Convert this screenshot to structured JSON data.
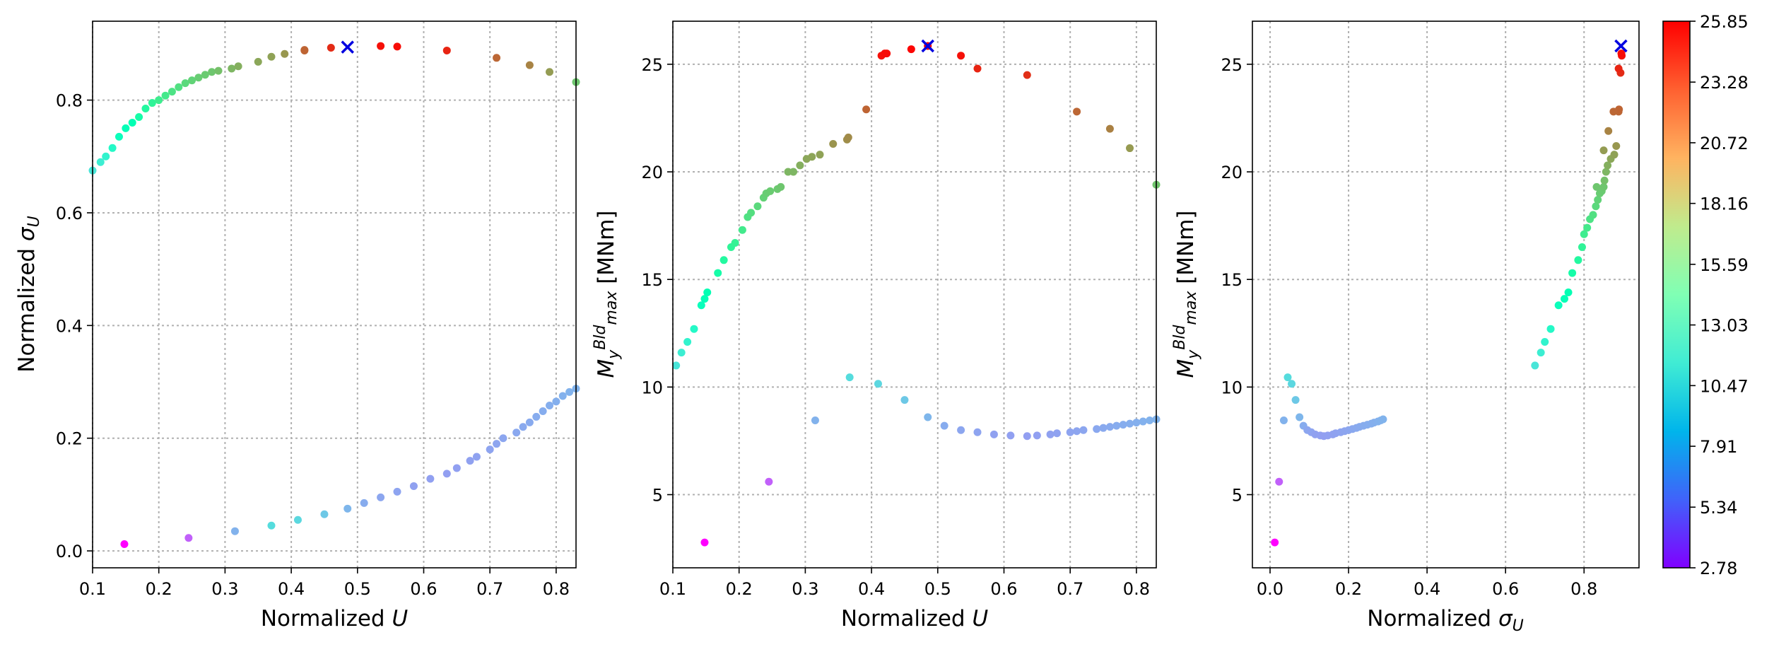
{
  "chart_data": [
    {
      "type": "scatter",
      "xlabel": "Normalized U",
      "ylabel": "Normalized σ_U",
      "xlim": [
        0.1,
        0.83
      ],
      "ylim": [
        -0.03,
        0.94
      ],
      "xticks": [
        "0.1",
        "0.2",
        "0.3",
        "0.4",
        "0.5",
        "0.6",
        "0.7",
        "0.8"
      ],
      "yticks": [
        "0.0",
        "0.2",
        "0.4",
        "0.6",
        "0.8"
      ],
      "grid": true,
      "colormap": "rainbow",
      "series": [
        {
          "x": [
            0.1,
            0.112,
            0.12,
            0.13,
            0.14,
            0.15,
            0.16,
            0.17,
            0.18,
            0.19,
            0.2,
            0.21,
            0.22,
            0.23,
            0.24,
            0.25,
            0.26,
            0.27,
            0.28,
            0.29,
            0.31,
            0.32,
            0.35,
            0.37,
            0.39,
            0.42,
            0.42,
            0.46,
            0.535,
            0.56,
            0.635,
            0.71,
            0.76,
            0.79,
            0.83
          ],
          "y": [
            0.675,
            0.69,
            0.7,
            0.715,
            0.735,
            0.75,
            0.76,
            0.77,
            0.785,
            0.795,
            0.8,
            0.808,
            0.815,
            0.823,
            0.83,
            0.835,
            0.84,
            0.845,
            0.85,
            0.852,
            0.856,
            0.86,
            0.868,
            0.877,
            0.882,
            0.888,
            0.889,
            0.893,
            0.896,
            0.895,
            0.888,
            0.875,
            0.862,
            0.85,
            0.832
          ],
          "color_value": [
            11.0,
            11.6,
            12.1,
            12.7,
            13.8,
            14.1,
            14.4,
            15.3,
            15.9,
            16.5,
            17.1,
            17.4,
            17.8,
            18.0,
            18.4,
            18.7,
            19.0,
            19.1,
            19.3,
            19.6,
            20.0,
            20.3,
            20.6,
            20.8,
            21.2,
            22.8,
            22.9,
            24.6,
            25.4,
            25.5,
            24.8,
            22.8,
            21.9,
            21.0,
            19.3
          ]
        },
        {
          "x": [
            0.148,
            0.245,
            0.315,
            0.37,
            0.41,
            0.45,
            0.485,
            0.51,
            0.535,
            0.56,
            0.585,
            0.61,
            0.635,
            0.65,
            0.67,
            0.68,
            0.7,
            0.71,
            0.72,
            0.74,
            0.75,
            0.76,
            0.77,
            0.78,
            0.79,
            0.8,
            0.81,
            0.82,
            0.83
          ],
          "y": [
            0.012,
            0.023,
            0.035,
            0.045,
            0.055,
            0.065,
            0.075,
            0.085,
            0.095,
            0.105,
            0.115,
            0.128,
            0.137,
            0.147,
            0.16,
            0.167,
            0.18,
            0.19,
            0.2,
            0.21,
            0.22,
            0.228,
            0.238,
            0.248,
            0.258,
            0.265,
            0.275,
            0.282,
            0.288
          ],
          "color_value": [
            2.78,
            5.6,
            8.45,
            10.45,
            10.2,
            9.4,
            8.6,
            8.2,
            8.0,
            7.9,
            7.8,
            7.75,
            7.72,
            7.75,
            7.8,
            7.85,
            7.9,
            7.95,
            8.0,
            8.05,
            8.1,
            8.15,
            8.2,
            8.25,
            8.3,
            8.35,
            8.4,
            8.45,
            8.5
          ]
        }
      ],
      "marker": {
        "x": 0.485,
        "y": 0.894,
        "symbol": "x",
        "color": "#0000e0"
      }
    },
    {
      "type": "scatter",
      "xlabel": "Normalized U",
      "ylabel": "M_y^Bld_max [MNm]",
      "xlim": [
        0.1,
        0.83
      ],
      "ylim": [
        1.6,
        27.0
      ],
      "xticks": [
        "0.1",
        "0.2",
        "0.3",
        "0.4",
        "0.5",
        "0.6",
        "0.7",
        "0.8"
      ],
      "yticks": [
        "5",
        "10",
        "15",
        "20",
        "25"
      ],
      "grid": true,
      "colormap": "rainbow",
      "series": [
        {
          "x": [
            0.105,
            0.113,
            0.122,
            0.132,
            0.143,
            0.148,
            0.152,
            0.168,
            0.177,
            0.188,
            0.194,
            0.205,
            0.213,
            0.218,
            0.228,
            0.237,
            0.241,
            0.247,
            0.258,
            0.263,
            0.274,
            0.282,
            0.292,
            0.302,
            0.31,
            0.322,
            0.342,
            0.363,
            0.365,
            0.392,
            0.415,
            0.42,
            0.423,
            0.46,
            0.485,
            0.535,
            0.56,
            0.635,
            0.71,
            0.76,
            0.79,
            0.83
          ],
          "y": [
            11.0,
            11.6,
            12.1,
            12.7,
            13.8,
            14.1,
            14.4,
            15.3,
            15.9,
            16.5,
            16.7,
            17.3,
            17.9,
            18.1,
            18.4,
            18.8,
            19.0,
            19.1,
            19.2,
            19.3,
            20.0,
            20.0,
            20.3,
            20.6,
            20.7,
            20.8,
            21.3,
            21.5,
            21.6,
            22.9,
            25.4,
            25.5,
            25.5,
            25.7,
            25.85,
            25.4,
            24.8,
            24.5,
            22.8,
            22.0,
            21.1,
            19.4
          ],
          "color_value": [
            11.0,
            11.6,
            12.1,
            12.7,
            13.8,
            14.1,
            14.4,
            15.3,
            15.9,
            16.5,
            16.7,
            17.3,
            17.9,
            18.1,
            18.4,
            18.8,
            19.0,
            19.1,
            19.2,
            19.3,
            20.0,
            20.0,
            20.3,
            20.6,
            20.7,
            20.8,
            21.3,
            21.5,
            21.6,
            22.9,
            25.4,
            25.5,
            25.5,
            25.7,
            25.85,
            25.4,
            24.8,
            24.5,
            22.8,
            22.0,
            21.1,
            19.4
          ]
        },
        {
          "x": [
            0.148,
            0.245,
            0.315,
            0.367,
            0.41,
            0.45,
            0.485,
            0.51,
            0.535,
            0.56,
            0.585,
            0.61,
            0.635,
            0.65,
            0.67,
            0.68,
            0.7,
            0.71,
            0.72,
            0.74,
            0.75,
            0.76,
            0.77,
            0.78,
            0.79,
            0.8,
            0.81,
            0.82,
            0.83
          ],
          "y": [
            2.78,
            5.6,
            8.45,
            10.45,
            10.15,
            9.4,
            8.6,
            8.2,
            8.0,
            7.9,
            7.8,
            7.75,
            7.72,
            7.75,
            7.8,
            7.85,
            7.9,
            7.95,
            8.0,
            8.05,
            8.1,
            8.15,
            8.2,
            8.25,
            8.3,
            8.35,
            8.4,
            8.45,
            8.5
          ],
          "color_value": [
            2.78,
            5.6,
            8.45,
            10.45,
            10.15,
            9.4,
            8.6,
            8.2,
            8.0,
            7.9,
            7.8,
            7.75,
            7.72,
            7.75,
            7.8,
            7.85,
            7.9,
            7.95,
            8.0,
            8.05,
            8.1,
            8.15,
            8.2,
            8.25,
            8.3,
            8.35,
            8.4,
            8.45,
            8.5
          ]
        }
      ],
      "marker": {
        "x": 0.485,
        "y": 25.85,
        "symbol": "x",
        "color": "#0000e0"
      }
    },
    {
      "type": "scatter",
      "xlabel": "Normalized σ_U",
      "ylabel": "M_y^Bld_max [MNm]",
      "xlim": [
        -0.045,
        0.94
      ],
      "ylim": [
        1.6,
        27.0
      ],
      "xticks": [
        "0.0",
        "0.2",
        "0.4",
        "0.6",
        "0.8"
      ],
      "yticks": [
        "5",
        "10",
        "15",
        "20",
        "25"
      ],
      "grid": true,
      "colormap": "rainbow",
      "series": [
        {
          "x": [
            0.675,
            0.69,
            0.7,
            0.715,
            0.735,
            0.75,
            0.76,
            0.77,
            0.785,
            0.795,
            0.8,
            0.808,
            0.815,
            0.823,
            0.83,
            0.835,
            0.84,
            0.845,
            0.85,
            0.852,
            0.856,
            0.86,
            0.868,
            0.877,
            0.882,
            0.888,
            0.889,
            0.893,
            0.896,
            0.895,
            0.888,
            0.875,
            0.862,
            0.85,
            0.832
          ],
          "y": [
            11.0,
            11.6,
            12.1,
            12.7,
            13.8,
            14.1,
            14.4,
            15.3,
            15.9,
            16.5,
            17.1,
            17.4,
            17.8,
            18.0,
            18.4,
            18.7,
            19.0,
            19.1,
            19.3,
            19.6,
            20.0,
            20.3,
            20.6,
            20.8,
            21.2,
            22.8,
            22.9,
            24.6,
            25.4,
            25.5,
            24.8,
            22.8,
            21.9,
            21.0,
            19.3
          ],
          "color_value": [
            11.0,
            11.6,
            12.1,
            12.7,
            13.8,
            14.1,
            14.4,
            15.3,
            15.9,
            16.5,
            17.1,
            17.4,
            17.8,
            18.0,
            18.4,
            18.7,
            19.0,
            19.1,
            19.3,
            19.6,
            20.0,
            20.3,
            20.6,
            20.8,
            21.2,
            22.8,
            22.9,
            24.6,
            25.4,
            25.5,
            24.8,
            22.8,
            21.9,
            21.0,
            19.3
          ]
        },
        {
          "x": [
            0.012,
            0.023,
            0.035,
            0.045,
            0.055,
            0.065,
            0.075,
            0.085,
            0.095,
            0.105,
            0.115,
            0.128,
            0.137,
            0.147,
            0.16,
            0.167,
            0.18,
            0.19,
            0.2,
            0.21,
            0.22,
            0.228,
            0.238,
            0.248,
            0.258,
            0.265,
            0.275,
            0.282,
            0.288
          ],
          "y": [
            2.78,
            5.6,
            8.45,
            10.45,
            10.15,
            9.4,
            8.6,
            8.2,
            8.0,
            7.9,
            7.8,
            7.75,
            7.72,
            7.75,
            7.8,
            7.85,
            7.9,
            7.95,
            8.0,
            8.05,
            8.1,
            8.15,
            8.2,
            8.25,
            8.3,
            8.35,
            8.4,
            8.45,
            8.5
          ],
          "color_value": [
            2.78,
            5.6,
            8.45,
            10.45,
            10.15,
            9.4,
            8.6,
            8.2,
            8.0,
            7.9,
            7.8,
            7.75,
            7.72,
            7.75,
            7.8,
            7.85,
            7.9,
            7.95,
            8.0,
            8.05,
            8.1,
            8.15,
            8.2,
            8.25,
            8.3,
            8.35,
            8.4,
            8.45,
            8.5
          ]
        }
      ],
      "marker": {
        "x": 0.894,
        "y": 25.85,
        "symbol": "x",
        "color": "#0000e0"
      }
    }
  ],
  "colorbar": {
    "min": 2.78,
    "max": 25.85,
    "ticks": [
      "2.78",
      "5.34",
      "7.91",
      "10.47",
      "13.03",
      "15.59",
      "18.16",
      "20.72",
      "23.28",
      "25.85"
    ],
    "colormap": "rainbow"
  }
}
